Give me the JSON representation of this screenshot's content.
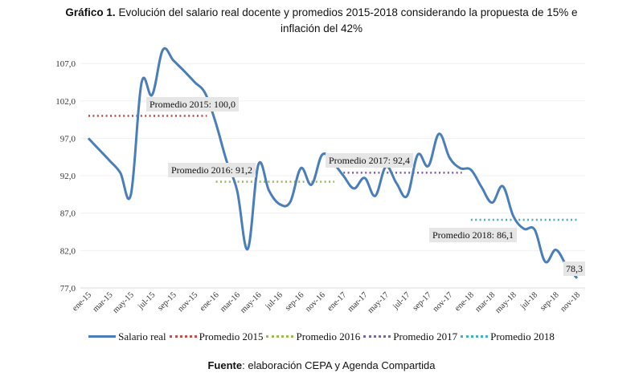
{
  "title": {
    "bold": "Gráfico 1.",
    "line1": " Evolución del salario real docente y promedios 2015-2018 considerando la propuesta de 15% e",
    "line2": "inflación del 42%"
  },
  "footer": {
    "bold": "Fuente",
    "text": ": elaboración CEPA y Agenda Compartida"
  },
  "chart_data": {
    "type": "line",
    "title": "Gráfico 1. Evolución del salario real docente y promedios 2015-2018 considerando la propuesta de 15% e inflación del 42%",
    "xlabel": "",
    "ylabel": "",
    "ylim": [
      77,
      110
    ],
    "yticks": [
      "77,0",
      "82,0",
      "87,0",
      "92,0",
      "97,0",
      "102,0",
      "107,0"
    ],
    "ytick_values": [
      77,
      82,
      87,
      92,
      97,
      102,
      107
    ],
    "grid": true,
    "legend_position": "bottom",
    "x": [
      "ene-15",
      "feb-15",
      "mar-15",
      "abr-15",
      "may-15",
      "jun-15",
      "jul-15",
      "ago-15",
      "sep-15",
      "oct-15",
      "nov-15",
      "dic-15",
      "ene-16",
      "feb-16",
      "mar-16",
      "abr-16",
      "may-16",
      "jun-16",
      "jul-16",
      "ago-16",
      "sep-16",
      "oct-16",
      "nov-16",
      "dic-16",
      "ene-17",
      "feb-17",
      "mar-17",
      "abr-17",
      "may-17",
      "jun-17",
      "jul-17",
      "ago-17",
      "sep-17",
      "oct-17",
      "nov-17",
      "dic-17",
      "ene-18",
      "feb-18",
      "mar-18",
      "abr-18",
      "may-18",
      "jun-18",
      "jul-18",
      "ago-18",
      "sep-18",
      "oct-18",
      "nov-18"
    ],
    "xtick_labels": [
      "ene-15",
      "mar-15",
      "may-15",
      "jul-15",
      "sep-15",
      "nov-15",
      "ene-16",
      "mar-16",
      "may-16",
      "jul-16",
      "sep-16",
      "nov-16",
      "ene-17",
      "mar-17",
      "may-17",
      "jul-17",
      "sep-17",
      "nov-17",
      "ene-18",
      "mar-18",
      "may-18",
      "jul-18",
      "sep-18",
      "nov-18"
    ],
    "series": [
      {
        "name": "Salario real",
        "color": "#4a7ebb",
        "style": "solid",
        "values": [
          97.0,
          95.5,
          94.0,
          92.4,
          89.5,
          104.4,
          102.8,
          108.8,
          107.4,
          106.0,
          104.5,
          103.0,
          99.0,
          94.0,
          90.0,
          82.2,
          93.5,
          90.0,
          88.2,
          88.5,
          93.0,
          90.8,
          94.8,
          93.8,
          92.0,
          90.3,
          91.7,
          89.3,
          93.2,
          91.0,
          89.3,
          94.8,
          93.3,
          97.6,
          94.4,
          93.0,
          92.8,
          90.5,
          88.4,
          90.6,
          86.6,
          84.9,
          84.8,
          80.5,
          82.1,
          80.0,
          78.3
        ]
      },
      {
        "name": "Promedio 2015",
        "color": "#c0504d",
        "style": "dotted",
        "value": 100.0,
        "from": 0,
        "to": 11,
        "label": "Promedio 2015: 100,0"
      },
      {
        "name": "Promedio 2016",
        "color": "#9bbb59",
        "style": "dotted",
        "value": 91.2,
        "from": 12,
        "to": 23,
        "label": "Promedio 2016: 91,2"
      },
      {
        "name": "Promedio 2017",
        "color": "#8064a2",
        "style": "dotted",
        "value": 92.4,
        "from": 24,
        "to": 35,
        "label": "Promedio 2017: 92,4"
      },
      {
        "name": "Promedio 2018",
        "color": "#4bacc6",
        "style": "dotted",
        "value": 86.1,
        "from": 36,
        "to": 46,
        "label": "Promedio 2018: 86,1"
      }
    ],
    "annotations": [
      {
        "text": "78,3",
        "x": "nov-18",
        "y": 78.3
      }
    ]
  }
}
